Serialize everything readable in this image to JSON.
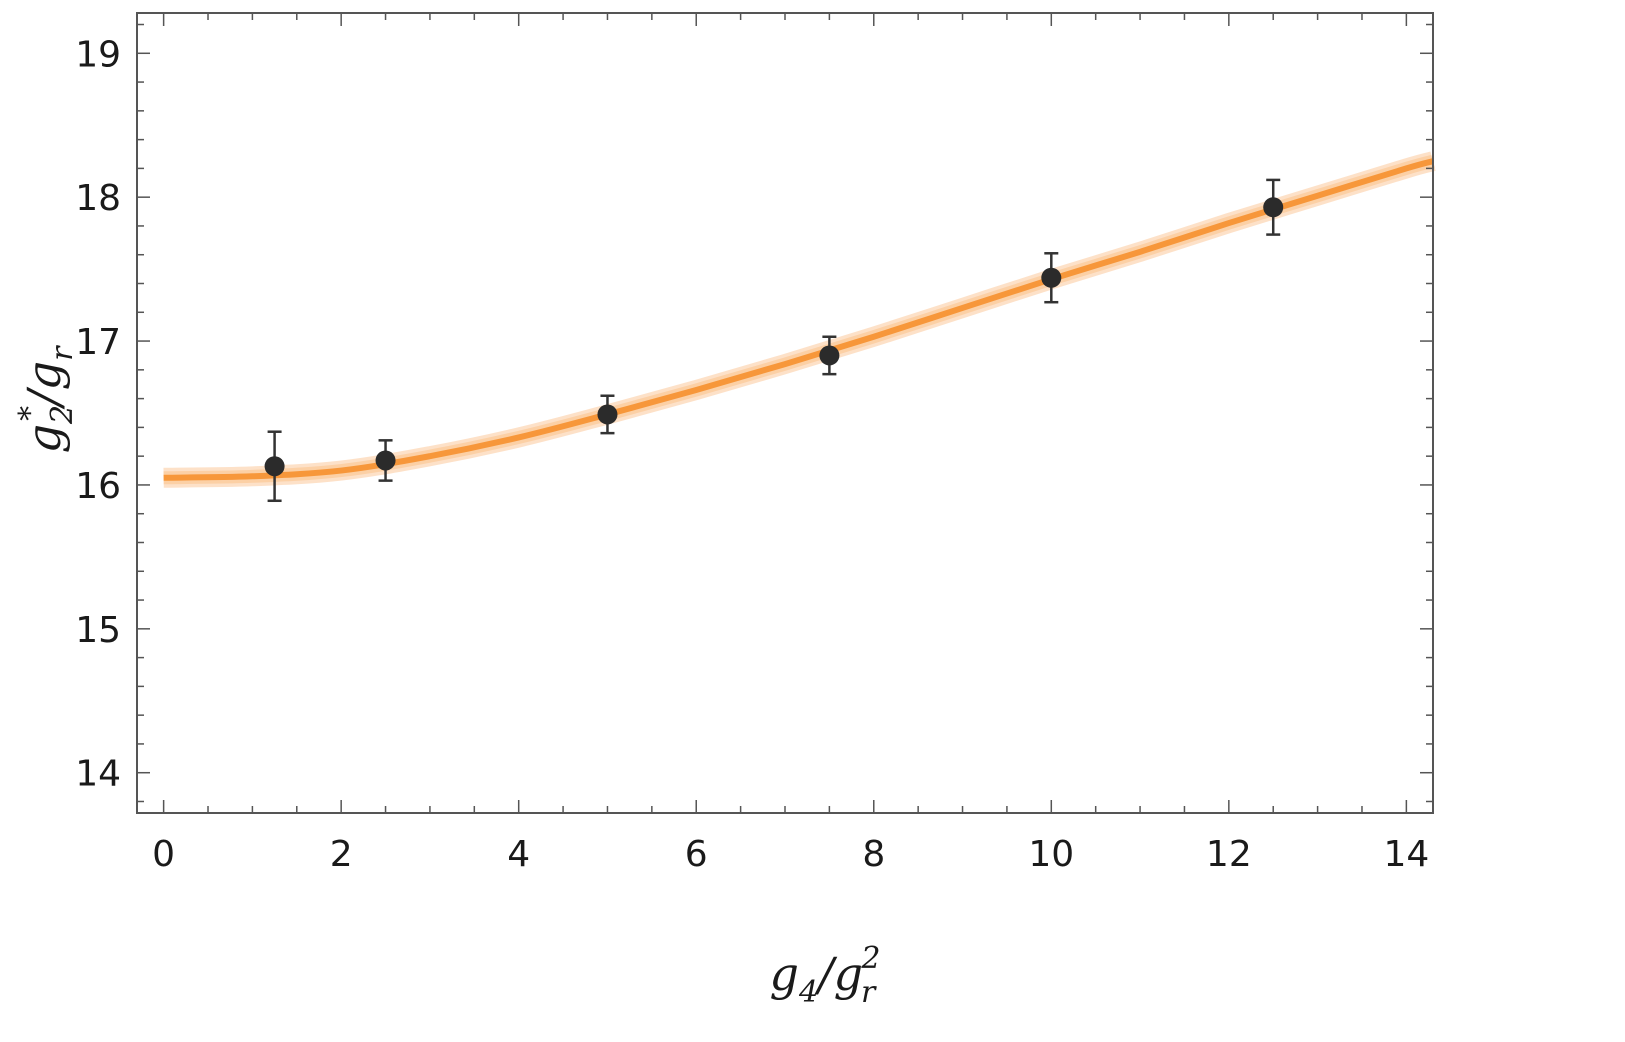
{
  "chart_data": {
    "type": "scatter",
    "xlabel": {
      "base": "g",
      "sub": "4",
      "sep": "/",
      "base2": "g",
      "sub2": "r",
      "sup2": "2"
    },
    "ylabel": {
      "base": "g",
      "sub": "2",
      "sup": "*",
      "sep": "/",
      "base2": "g",
      "sub2": "r"
    },
    "xlim": [
      -0.3,
      14.3
    ],
    "ylim": [
      13.72,
      19.28
    ],
    "x_ticks": [
      0,
      2,
      4,
      6,
      8,
      10,
      12,
      14
    ],
    "y_ticks": [
      14,
      15,
      16,
      17,
      18,
      19
    ],
    "x_tick_labels": [
      "0",
      "2",
      "4",
      "6",
      "8",
      "10",
      "12",
      "14"
    ],
    "y_tick_labels": [
      "14",
      "15",
      "16",
      "17",
      "18",
      "19"
    ],
    "grid": false,
    "points": {
      "x": [
        1.25,
        2.5,
        5.0,
        7.5,
        10.0,
        12.5
      ],
      "y": [
        16.13,
        16.17,
        16.49,
        16.9,
        17.44,
        17.93
      ],
      "y_err": [
        0.24,
        0.14,
        0.13,
        0.13,
        0.17,
        0.19
      ],
      "color": "#2b2b2b"
    },
    "fit_curve": {
      "x": [
        0,
        1,
        2,
        3,
        4,
        5,
        6,
        7,
        8,
        9,
        10,
        11,
        12,
        13,
        14,
        14.3
      ],
      "y": [
        16.05,
        16.06,
        16.1,
        16.2,
        16.33,
        16.49,
        16.66,
        16.84,
        17.03,
        17.23,
        17.43,
        17.62,
        17.82,
        18.01,
        18.2,
        18.25
      ],
      "color": "#f7973a",
      "band_color": "#fbc99a"
    }
  }
}
